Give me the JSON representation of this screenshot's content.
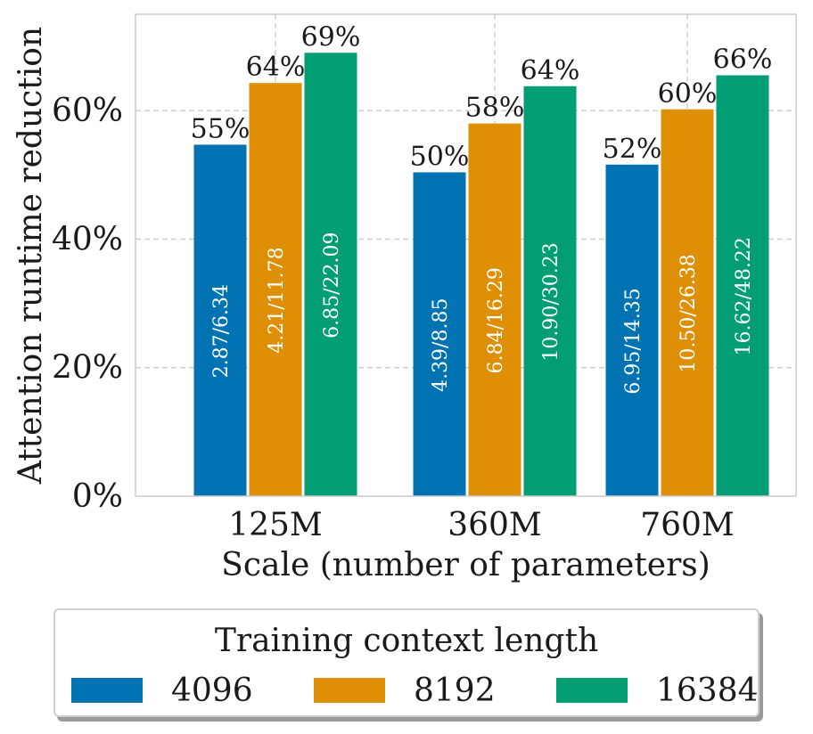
{
  "chart_data": {
    "type": "bar",
    "title": "",
    "xlabel": "Scale (number of parameters)",
    "ylabel": "Attention runtime reduction",
    "categories": [
      "125M",
      "360M",
      "760M"
    ],
    "ylim": [
      0,
      75
    ],
    "yticks": [
      0,
      20,
      40,
      60
    ],
    "ytick_labels": [
      "0%",
      "20%",
      "40%",
      "60%"
    ],
    "grid": true,
    "legend_title": "Training context length",
    "legend_position": "bottom-outside",
    "series": [
      {
        "name": "4096",
        "color": "#0173b2",
        "values": [
          54.7,
          50.4,
          51.6
        ],
        "top_labels": [
          "55%",
          "50%",
          "52%"
        ],
        "inner_labels": [
          "2.87/6.34",
          "4.39/8.85",
          "6.95/14.35"
        ]
      },
      {
        "name": "8192",
        "color": "#de8f05",
        "values": [
          64.3,
          58.0,
          60.2
        ],
        "top_labels": [
          "64%",
          "58%",
          "60%"
        ],
        "inner_labels": [
          "4.21/11.78",
          "6.84/16.29",
          "10.50/26.38"
        ]
      },
      {
        "name": "16384",
        "color": "#029e73",
        "values": [
          69.0,
          63.8,
          65.5
        ],
        "top_labels": [
          "69%",
          "64%",
          "66%"
        ],
        "inner_labels": [
          "6.85/22.09",
          "10.90/30.23",
          "16.62/48.22"
        ]
      }
    ]
  }
}
